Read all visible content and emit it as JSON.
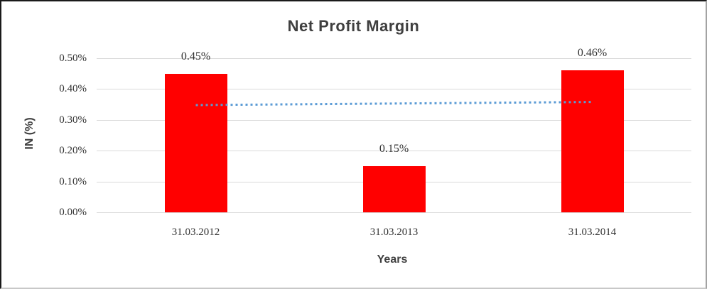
{
  "chart_data": {
    "type": "bar",
    "title": "Net Profit Margin",
    "xlabel": "Years",
    "ylabel": "IN (%)",
    "categories": [
      "31.03.2012",
      "31.03.2013",
      "31.03.2014"
    ],
    "values": [
      0.45,
      0.15,
      0.46
    ],
    "data_labels": [
      "0.45%",
      "0.15%",
      "0.46%"
    ],
    "y_tick_labels": [
      "0.50%",
      "0.40%",
      "0.30%",
      "0.20%",
      "0.10%",
      "0.00%"
    ],
    "ylim": [
      0,
      0.5
    ],
    "grid": "horizontal",
    "legend": "none",
    "colors": {
      "bar": "#FF0000",
      "gridline": "#D9D9D9",
      "title_text": "#3F3F3F",
      "tick_text": "#333333",
      "trendline": "#5B9BD5"
    },
    "trendline": {
      "type": "linear",
      "style": "dotted",
      "color": "#5B9BD5",
      "start_value": 0.348,
      "end_value": 0.358
    }
  }
}
